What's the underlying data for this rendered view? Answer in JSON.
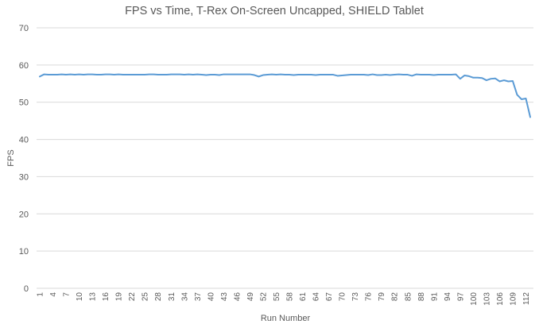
{
  "chart_data": {
    "type": "line",
    "title": "FPS vs Time, T-Rex On-Screen Uncapped, SHIELD Tablet",
    "xlabel": "Run Number",
    "ylabel": "FPS",
    "ylim": [
      0,
      70
    ],
    "yticks": [
      0,
      10,
      20,
      30,
      40,
      50,
      60,
      70
    ],
    "grid": true,
    "legend": "none",
    "line_color": "#5b9bd5",
    "x": [
      1,
      2,
      3,
      4,
      5,
      6,
      7,
      8,
      9,
      10,
      11,
      12,
      13,
      14,
      15,
      16,
      17,
      18,
      19,
      20,
      21,
      22,
      23,
      24,
      25,
      26,
      27,
      28,
      29,
      30,
      31,
      32,
      33,
      34,
      35,
      36,
      37,
      38,
      39,
      40,
      41,
      42,
      43,
      44,
      45,
      46,
      47,
      48,
      49,
      50,
      51,
      52,
      53,
      54,
      55,
      56,
      57,
      58,
      59,
      60,
      61,
      62,
      63,
      64,
      65,
      66,
      67,
      68,
      69,
      70,
      71,
      72,
      73,
      74,
      75,
      76,
      77,
      78,
      79,
      80,
      81,
      82,
      83,
      84,
      85,
      86,
      87,
      88,
      89,
      90,
      91,
      92,
      93,
      94,
      95,
      96,
      97,
      98,
      99,
      100,
      101,
      102,
      103,
      104,
      105,
      106,
      107,
      108,
      109,
      110,
      111,
      112,
      113
    ],
    "xtick_labels": [
      "1",
      "4",
      "7",
      "10",
      "13",
      "16",
      "19",
      "22",
      "25",
      "28",
      "31",
      "34",
      "37",
      "40",
      "43",
      "46",
      "49",
      "52",
      "55",
      "58",
      "61",
      "64",
      "67",
      "70",
      "73",
      "76",
      "79",
      "82",
      "85",
      "88",
      "91",
      "94",
      "97",
      "100",
      "103",
      "106",
      "109",
      "112"
    ],
    "series": [
      {
        "values": [
          56.9,
          57.5,
          57.4,
          57.4,
          57.4,
          57.5,
          57.4,
          57.5,
          57.4,
          57.5,
          57.4,
          57.5,
          57.5,
          57.4,
          57.4,
          57.5,
          57.5,
          57.4,
          57.5,
          57.4,
          57.4,
          57.4,
          57.4,
          57.4,
          57.4,
          57.5,
          57.5,
          57.4,
          57.4,
          57.4,
          57.5,
          57.5,
          57.5,
          57.4,
          57.5,
          57.4,
          57.5,
          57.4,
          57.3,
          57.4,
          57.4,
          57.3,
          57.5,
          57.5,
          57.5,
          57.5,
          57.5,
          57.5,
          57.5,
          57.3,
          56.9,
          57.3,
          57.4,
          57.5,
          57.4,
          57.5,
          57.4,
          57.4,
          57.3,
          57.4,
          57.4,
          57.4,
          57.4,
          57.3,
          57.4,
          57.4,
          57.4,
          57.4,
          57.1,
          57.2,
          57.3,
          57.4,
          57.4,
          57.4,
          57.4,
          57.3,
          57.5,
          57.3,
          57.3,
          57.4,
          57.3,
          57.4,
          57.5,
          57.4,
          57.4,
          57.1,
          57.5,
          57.4,
          57.4,
          57.4,
          57.3,
          57.4,
          57.4,
          57.4,
          57.4,
          57.5,
          56.3,
          57.2,
          57.0,
          56.6,
          56.6,
          56.5,
          55.9,
          56.3,
          56.4,
          55.6,
          55.9,
          55.6,
          55.7,
          52.0,
          50.8,
          51.0,
          46.0
        ]
      }
    ]
  }
}
